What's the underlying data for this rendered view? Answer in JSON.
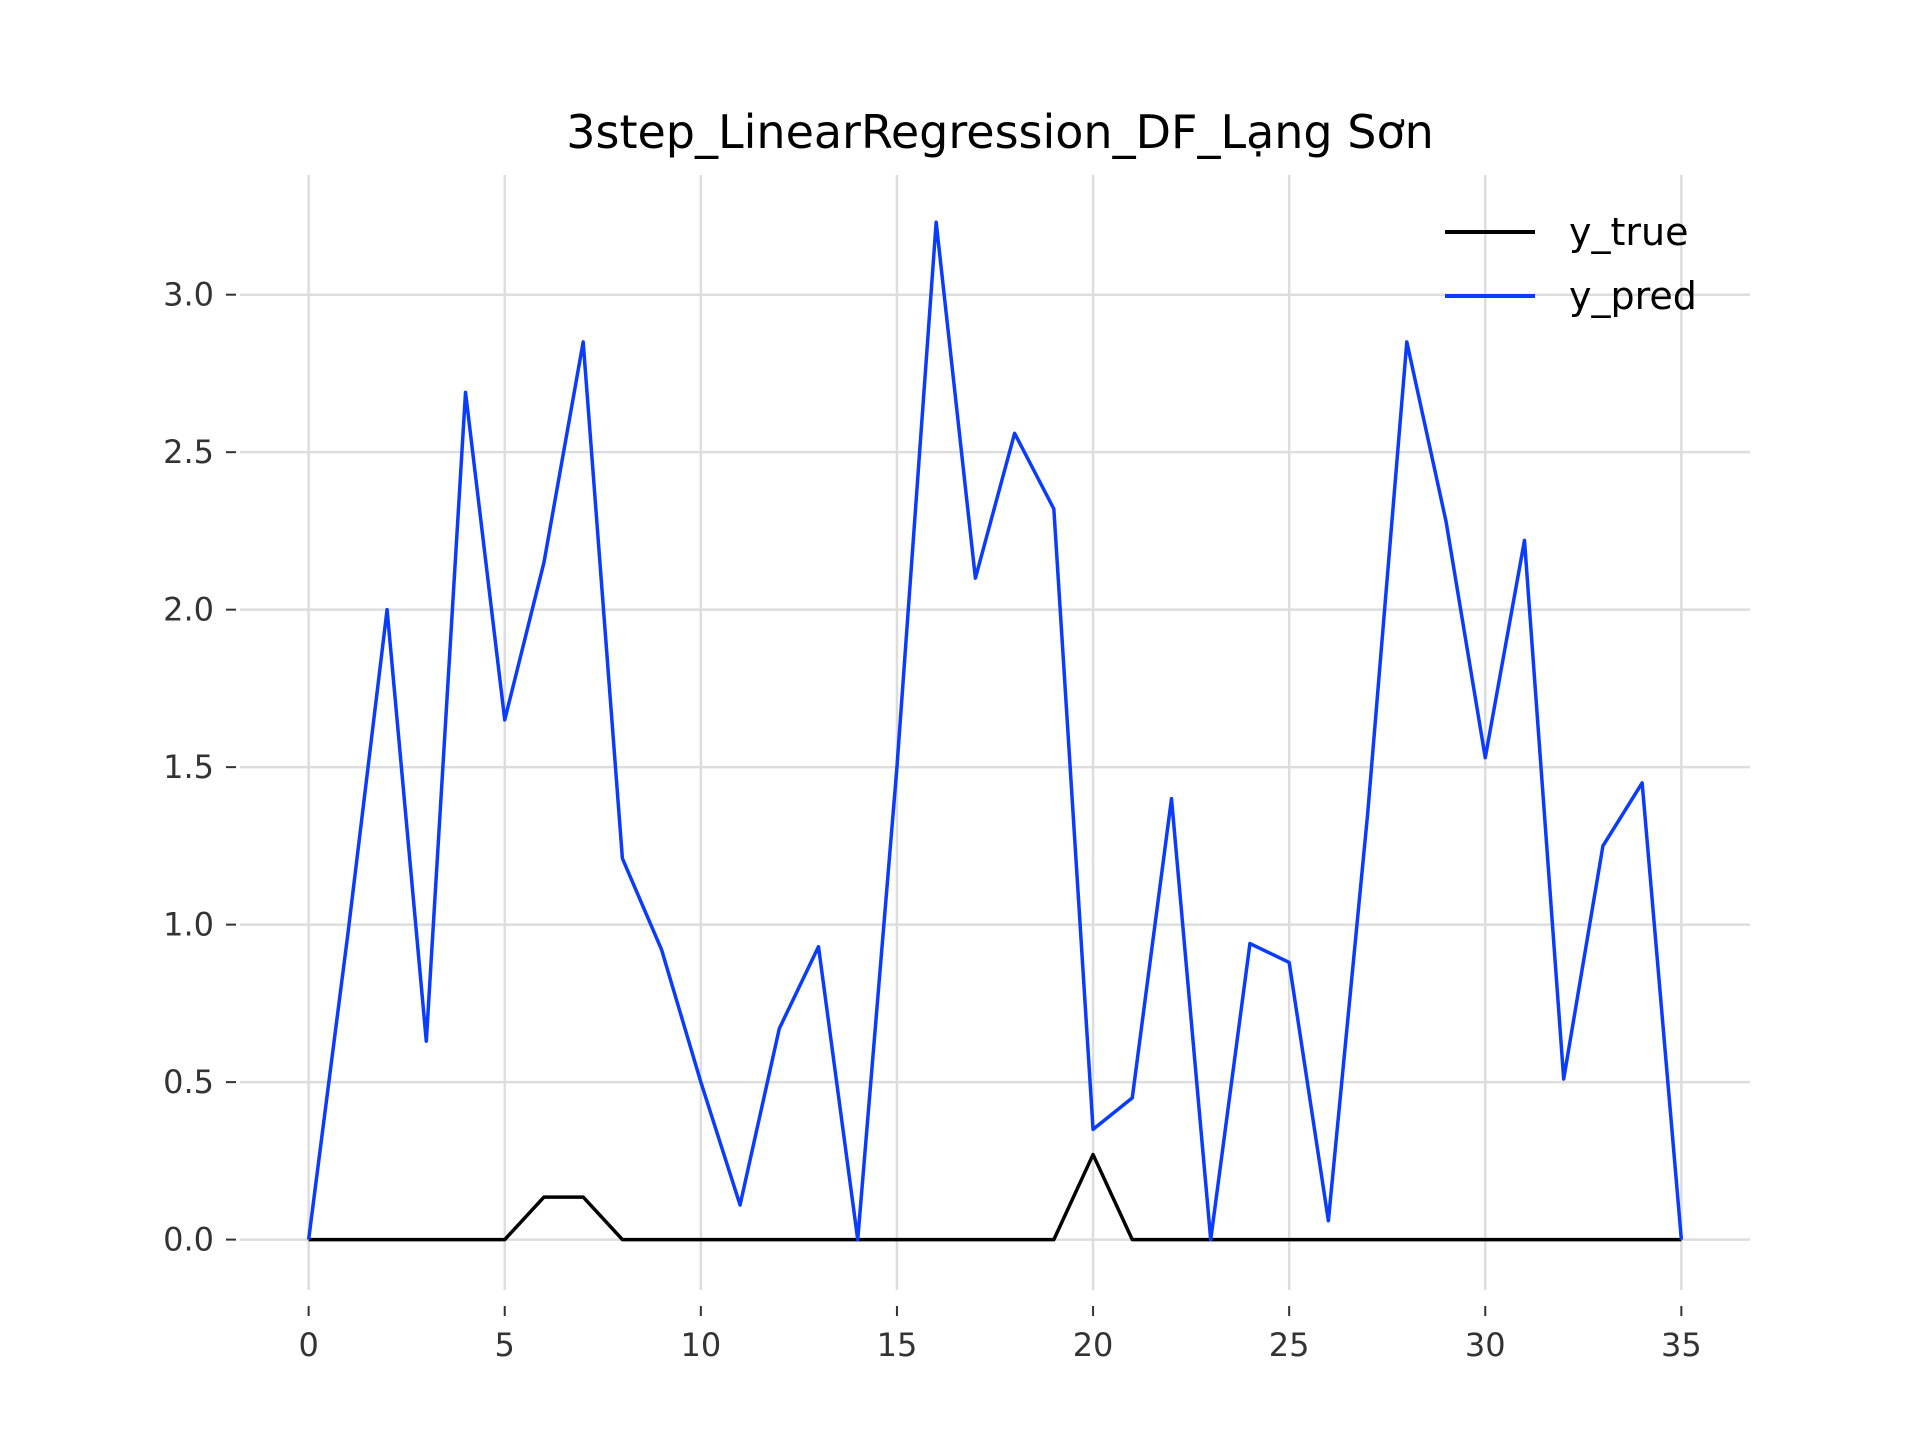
{
  "chart_data": {
    "type": "line",
    "title": "3step_LinearRegression_DF_Lạng Sơn",
    "xlabel": "",
    "ylabel": "",
    "x": [
      0,
      1,
      2,
      3,
      4,
      5,
      6,
      7,
      8,
      9,
      10,
      11,
      12,
      13,
      14,
      15,
      16,
      17,
      18,
      19,
      20,
      21,
      22,
      23,
      24,
      25,
      26,
      27,
      28,
      29,
      30,
      31,
      32,
      33,
      34,
      35
    ],
    "xlim": [
      -1.75,
      36.75
    ],
    "ylim": [
      -0.16,
      3.38
    ],
    "xticks": [
      0,
      5,
      10,
      15,
      20,
      25,
      30,
      35
    ],
    "xtick_labels": [
      "0",
      "5",
      "10",
      "15",
      "20",
      "25",
      "30",
      "35"
    ],
    "yticks": [
      0.0,
      0.5,
      1.0,
      1.5,
      2.0,
      2.5,
      3.0
    ],
    "ytick_labels": [
      "0.0",
      "0.5",
      "1.0",
      "1.5",
      "2.0",
      "2.5",
      "3.0"
    ],
    "grid": true,
    "legend_position": "top-right",
    "series": [
      {
        "name": "y_true",
        "color": "#000000",
        "values": [
          0,
          0,
          0,
          0,
          0,
          0,
          0.135,
          0.135,
          0,
          0,
          0,
          0,
          0,
          0,
          0,
          0,
          0,
          0,
          0,
          0,
          0.27,
          0,
          0,
          0,
          0,
          0,
          0,
          0,
          0,
          0,
          0,
          0,
          0,
          0,
          0,
          0
        ]
      },
      {
        "name": "y_pred",
        "color": "#0a3cff",
        "values": [
          0,
          0.97,
          2.0,
          0.63,
          2.69,
          1.65,
          2.15,
          2.85,
          1.21,
          0.92,
          0.5,
          0.11,
          0.67,
          0.93,
          0,
          1.5,
          3.23,
          2.1,
          2.56,
          2.32,
          0.35,
          0.45,
          1.4,
          0,
          0.94,
          0.88,
          0.06,
          1.35,
          2.85,
          2.28,
          1.53,
          2.22,
          0.51,
          1.25,
          1.45,
          0
        ]
      }
    ]
  }
}
